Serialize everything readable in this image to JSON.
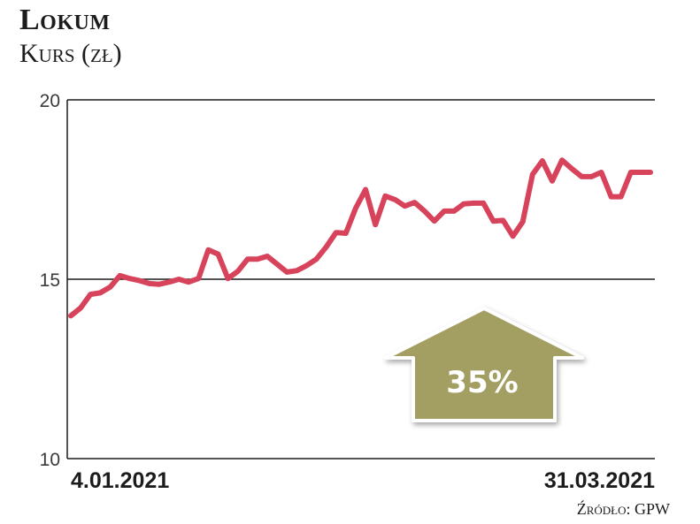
{
  "chart_data": {
    "type": "line",
    "title": "Lokum",
    "subtitle": "Kurs (zł)",
    "ylim": [
      10,
      20
    ],
    "yticks": [
      "20",
      "15",
      "10"
    ],
    "x_start_label": "4.01.2021",
    "x_end_label": "31.03.2021",
    "series": [
      {
        "values": [
          13.98,
          14.2,
          14.58,
          14.62,
          14.78,
          15.1,
          15.02,
          14.96,
          14.88,
          14.86,
          14.92,
          15.0,
          14.92,
          15.02,
          15.82,
          15.7,
          15.02,
          15.22,
          15.56,
          15.56,
          15.64,
          15.42,
          15.2,
          15.24,
          15.38,
          15.56,
          15.9,
          16.3,
          16.28,
          16.98,
          17.5,
          16.52,
          17.32,
          17.22,
          17.04,
          17.14,
          16.9,
          16.62,
          16.9,
          16.9,
          17.1,
          17.12,
          17.12,
          16.62,
          16.64,
          16.2,
          16.6,
          17.92,
          18.3,
          17.74,
          18.32,
          18.08,
          17.86,
          17.86,
          17.98,
          17.3,
          17.3,
          17.98,
          17.98,
          17.98
        ]
      }
    ],
    "annotation": "35%",
    "colors": {
      "line": "#d8435c",
      "arrow": "#a39f62",
      "grid": "#1c1c1c"
    }
  },
  "source": "Źródło: GPW"
}
